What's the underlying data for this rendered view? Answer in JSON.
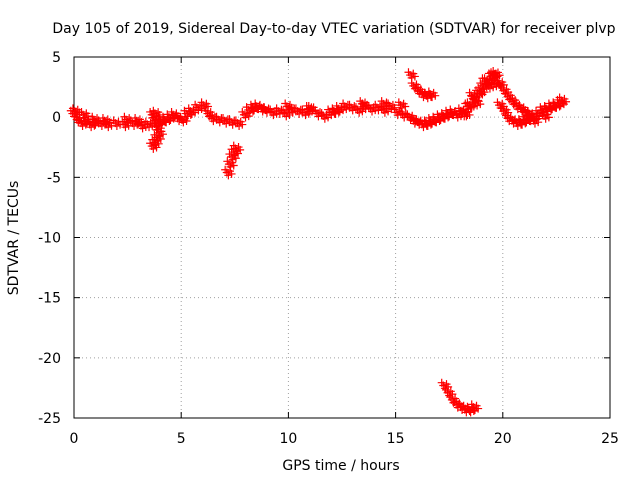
{
  "chart_data": {
    "type": "scatter",
    "title": "Day 105 of 2019, Sidereal Day-to-day VTEC variation (SDTVAR) for receiver plvp",
    "xlabel": "GPS time / hours",
    "ylabel": "SDTVAR / TECUs",
    "xlim": [
      0,
      25
    ],
    "ylim": [
      -25,
      5
    ],
    "xticks": [
      0,
      5,
      10,
      15,
      20,
      25
    ],
    "yticks": [
      5,
      0,
      -5,
      -10,
      -15,
      -20,
      -25
    ],
    "xtick_labels": [
      "0",
      "5",
      "10",
      "15",
      "20",
      "25"
    ],
    "ytick_labels": [
      "5",
      "0",
      "-5",
      "-10",
      "-15",
      "-20",
      "-25"
    ],
    "grid": true,
    "marker": "+",
    "color": "#ff0000",
    "series": [
      {
        "name": "SDTVAR",
        "x": [
          0.0,
          0.2,
          0.4,
          0.6,
          0.8,
          1.0,
          1.3,
          1.6,
          2.0,
          2.4,
          2.8,
          3.2,
          3.5,
          3.7,
          3.8,
          3.9,
          3.85,
          3.95,
          4.1,
          4.3,
          4.5,
          4.7,
          4.9,
          5.1,
          5.3,
          5.5,
          5.8,
          6.1,
          6.3,
          6.5,
          6.8,
          7.1,
          7.4,
          7.7,
          8.0,
          8.2,
          8.4,
          8.6,
          8.8,
          9.0,
          9.3,
          9.6,
          9.9,
          10.2,
          10.5,
          10.8,
          11.1,
          11.4,
          11.7,
          12.0,
          12.2,
          12.4,
          12.7,
          13.0,
          13.3,
          13.6,
          13.9,
          14.2,
          14.5,
          14.8,
          15.1,
          15.4,
          15.7,
          15.9,
          16.1,
          16.3,
          16.5,
          16.7,
          16.9,
          17.1,
          17.3,
          17.5,
          17.7,
          17.9,
          18.1,
          18.3,
          18.5,
          18.7,
          18.9,
          19.1,
          19.3,
          19.5,
          19.7,
          19.9,
          20.1,
          20.3,
          20.5,
          20.7,
          20.9,
          21.1,
          21.3,
          21.5,
          21.7,
          21.9,
          22.1,
          22.3,
          22.5,
          22.7,
          22.8,
          15.75,
          15.9,
          16.1,
          16.3,
          16.5,
          16.7,
          18.2,
          18.4,
          18.6,
          18.8,
          19.0,
          19.2,
          19.4,
          19.6,
          19.7,
          19.9,
          20.1,
          20.3,
          20.5,
          20.7,
          20.9,
          21.1,
          21.3,
          3.7,
          3.8,
          3.9,
          4.0,
          7.2,
          7.3,
          7.4,
          7.5,
          7.6,
          17.3,
          17.5,
          17.7,
          17.9,
          18.1,
          18.3,
          18.5,
          18.7,
          0.1,
          0.5,
          1.0,
          1.5,
          2.5,
          3.0,
          10.0,
          11.0,
          13.5,
          14.5,
          15.3,
          21.5,
          22.0
        ],
        "y": [
          0.3,
          -0.2,
          -0.5,
          -0.3,
          -0.6,
          -0.4,
          -0.5,
          -0.6,
          -0.5,
          -0.6,
          -0.5,
          -0.7,
          -0.6,
          0.2,
          -0.3,
          -0.8,
          0.3,
          -0.5,
          -0.3,
          -0.2,
          0.0,
          0.2,
          -0.1,
          -0.2,
          0.3,
          0.5,
          0.8,
          1.0,
          0.3,
          -0.1,
          -0.2,
          -0.3,
          -0.4,
          -0.5,
          0.2,
          0.6,
          0.8,
          0.9,
          0.7,
          0.6,
          0.4,
          0.5,
          0.3,
          0.6,
          0.5,
          0.4,
          0.7,
          0.3,
          0.1,
          0.4,
          0.5,
          0.7,
          0.9,
          0.8,
          0.6,
          0.9,
          0.7,
          0.8,
          0.6,
          0.9,
          0.4,
          0.2,
          0.0,
          -0.3,
          -0.4,
          -0.6,
          -0.5,
          -0.3,
          -0.2,
          0.0,
          0.1,
          0.3,
          0.4,
          0.2,
          0.5,
          0.3,
          1.0,
          1.5,
          2.0,
          2.6,
          3.0,
          3.4,
          2.8,
          1.0,
          0.5,
          -0.1,
          -0.3,
          -0.5,
          -0.4,
          -0.2,
          -0.1,
          0.0,
          0.3,
          0.6,
          0.7,
          0.9,
          1.0,
          1.2,
          1.4,
          3.5,
          2.6,
          2.2,
          1.9,
          1.8,
          1.9,
          0.3,
          0.9,
          1.8,
          1.2,
          2.2,
          3.0,
          2.6,
          3.5,
          3.6,
          2.8,
          2.2,
          1.7,
          1.3,
          0.9,
          0.7,
          0.4,
          0.2,
          -2.4,
          -2.1,
          -1.7,
          -1.3,
          -4.6,
          -3.9,
          -3.3,
          -2.9,
          -2.6,
          -22.3,
          -22.9,
          -23.5,
          -23.9,
          -24.1,
          -24.3,
          -24.3,
          -24.1,
          0.5,
          0.2,
          -0.2,
          -0.3,
          -0.2,
          -0.3,
          0.9,
          0.7,
          1.1,
          1.1,
          1.0,
          -0.3,
          0.1
        ]
      }
    ]
  }
}
